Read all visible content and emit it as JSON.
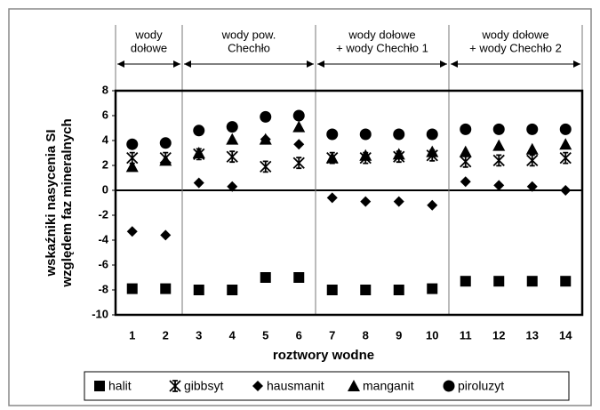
{
  "chart_data": {
    "type": "scatter",
    "ylabel": [
      "wskaźniki nasycenia SI",
      "względem faz mineralnych"
    ],
    "xlabel": "roztwory wodne",
    "categories": [
      "1",
      "2",
      "3",
      "4",
      "5",
      "6",
      "7",
      "8",
      "9",
      "10",
      "11",
      "12",
      "13",
      "14"
    ],
    "groups": [
      [
        "wody",
        "dołowe"
      ],
      [
        "wody pow.",
        "Chechło"
      ],
      [
        "wody dołowe",
        "+ wody Chechło 1"
      ],
      [
        "wody dołowe",
        "+ wody Chechło 2"
      ]
    ],
    "ylim": [
      -10,
      8
    ],
    "yticks": [
      -10,
      -8,
      -6,
      -4,
      -2,
      0,
      2,
      4,
      6,
      8
    ],
    "series": [
      {
        "name": "halit",
        "marker": "square",
        "color": "#000000",
        "values": [
          -7.9,
          -7.9,
          -8.0,
          -8.0,
          -7.0,
          -7.0,
          -8.0,
          -8.0,
          -8.0,
          -7.9,
          -7.3,
          -7.3,
          -7.3,
          -7.3
        ]
      },
      {
        "name": "gibbsyt",
        "marker": "asterisk",
        "color": "#000000",
        "values": [
          2.6,
          2.6,
          2.9,
          2.7,
          1.9,
          2.2,
          2.6,
          2.6,
          2.7,
          2.8,
          2.3,
          2.4,
          2.4,
          2.6
        ]
      },
      {
        "name": "hausmanit",
        "marker": "diamond",
        "color": "#000000",
        "values": [
          -3.3,
          -3.6,
          0.6,
          0.3,
          4.1,
          3.7,
          -0.6,
          -0.9,
          -0.9,
          -1.2,
          0.7,
          0.4,
          0.3,
          0.0
        ]
      },
      {
        "name": "manganit",
        "marker": "triangle",
        "color": "#000000",
        "values": [
          1.9,
          2.4,
          3.0,
          4.1,
          4.1,
          5.1,
          2.6,
          2.8,
          2.9,
          3.1,
          3.1,
          3.6,
          3.3,
          3.7
        ]
      },
      {
        "name": "piroluzyt",
        "marker": "circle",
        "color": "#000000",
        "values": [
          3.7,
          3.8,
          4.8,
          5.1,
          5.9,
          6.0,
          4.5,
          4.5,
          4.5,
          4.5,
          4.9,
          4.9,
          4.9,
          4.9
        ]
      }
    ]
  }
}
